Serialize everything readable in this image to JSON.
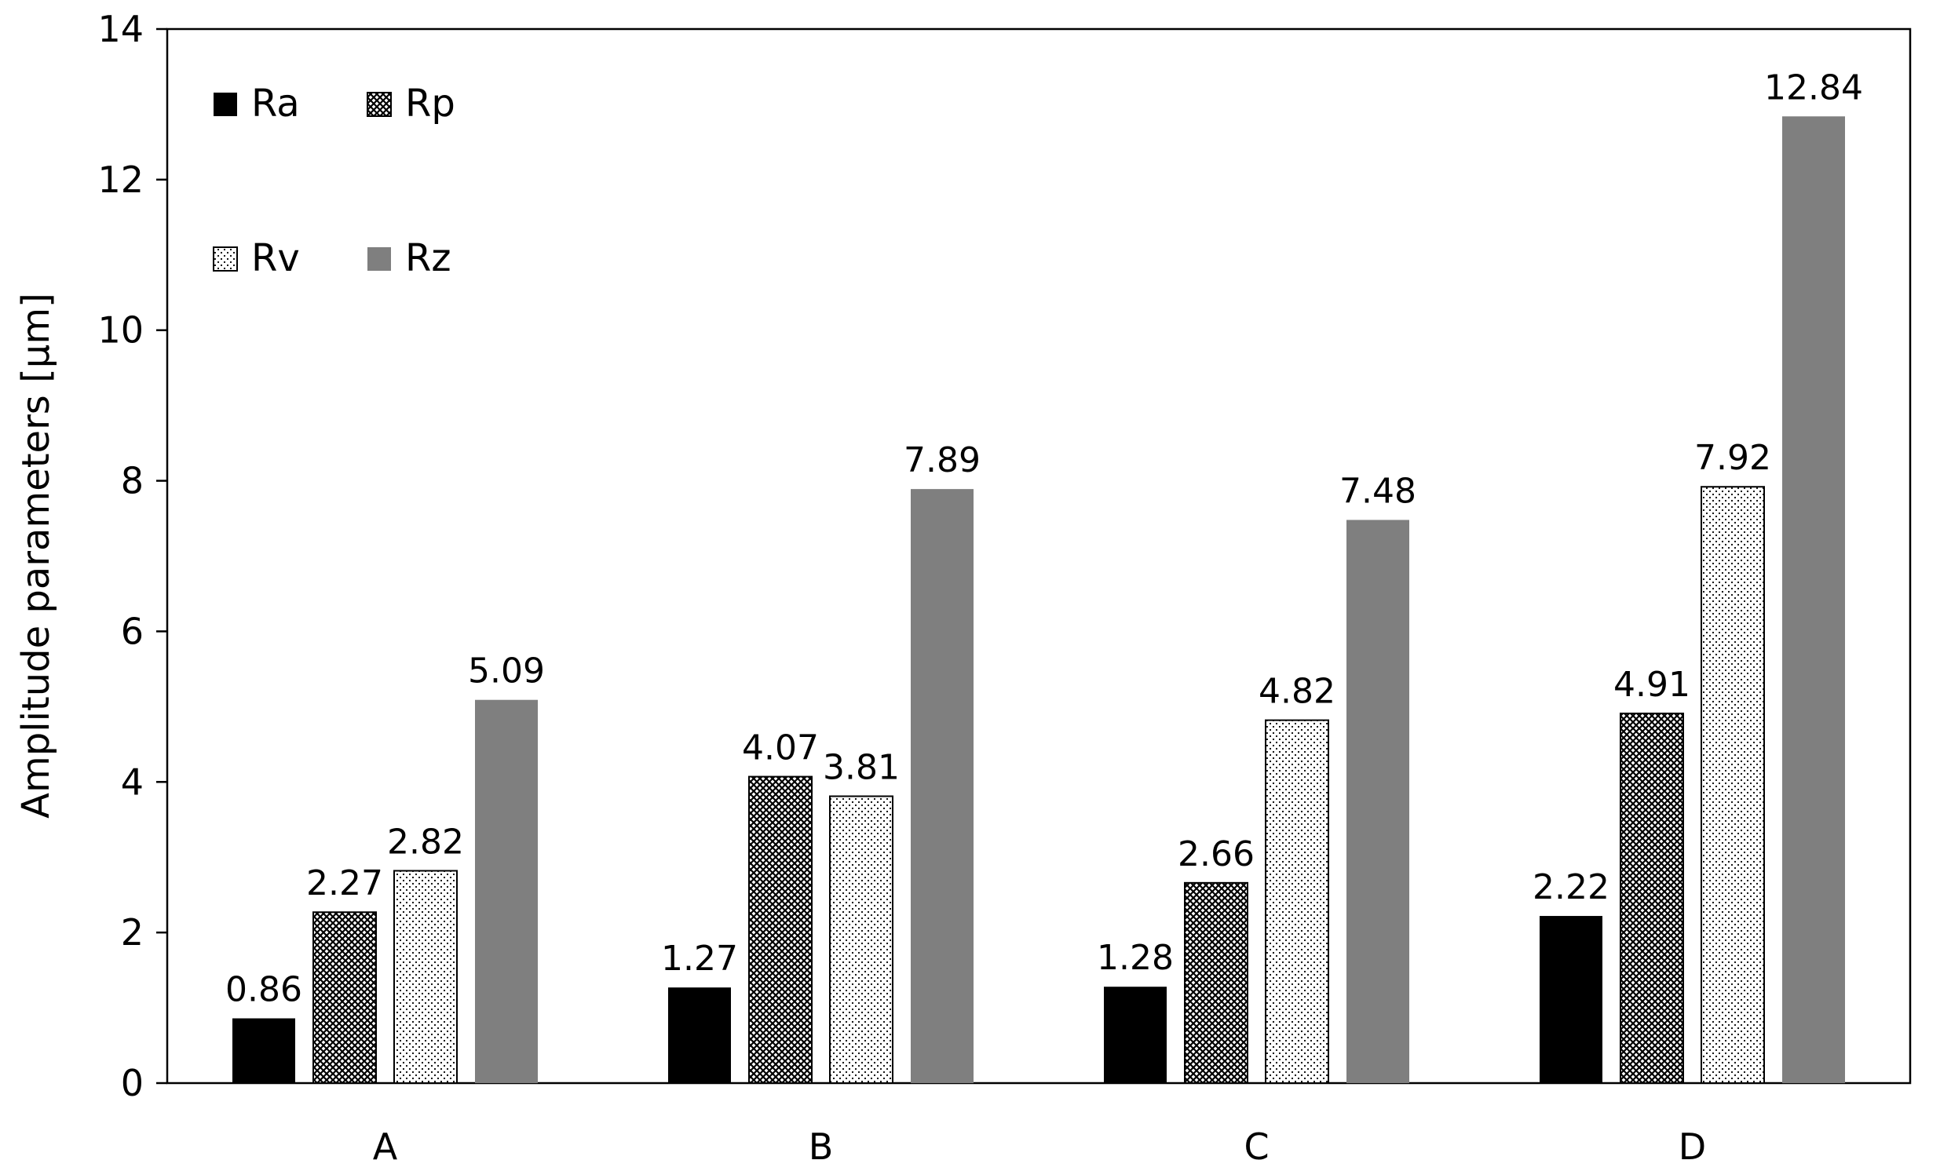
{
  "chart_data": {
    "type": "bar",
    "title": "",
    "xlabel": "",
    "ylabel": "Amplitude parameters [µm]",
    "ylim": [
      0,
      14
    ],
    "yticks": [
      0,
      2,
      4,
      6,
      8,
      10,
      12,
      14
    ],
    "categories": [
      "A",
      "B",
      "C",
      "D"
    ],
    "series": [
      {
        "name": "Ra",
        "fill": "solid",
        "color": "#000000",
        "values": [
          0.86,
          1.27,
          1.28,
          2.22
        ],
        "labels": [
          "0.86",
          "1.27",
          "1.28",
          "2.22"
        ]
      },
      {
        "name": "Rp",
        "fill": "crosshatch",
        "color": "#000000",
        "values": [
          2.27,
          4.07,
          2.66,
          4.91
        ],
        "labels": [
          "2.27",
          "4.07",
          "2.66",
          "4.91"
        ]
      },
      {
        "name": "Rv",
        "fill": "dots",
        "color": "#000000",
        "values": [
          2.82,
          3.81,
          4.82,
          7.92
        ],
        "labels": [
          "2.82",
          "3.81",
          "4.82",
          "7.92"
        ]
      },
      {
        "name": "Rz",
        "fill": "solid",
        "color": "#7f7f7f",
        "values": [
          5.09,
          7.89,
          7.48,
          12.84
        ],
        "labels": [
          "5.09",
          "7.89",
          "7.48",
          "12.84"
        ]
      }
    ],
    "legend_position": "top-left",
    "grid": false
  }
}
